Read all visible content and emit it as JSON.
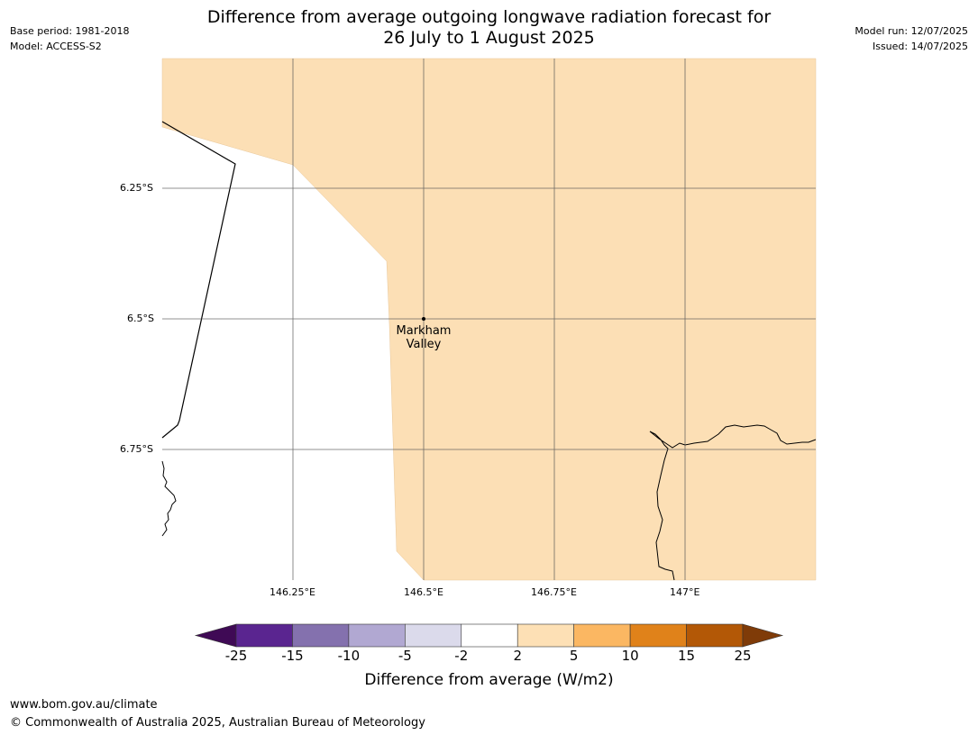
{
  "title": {
    "line1": "Difference from average outgoing longwave radiation forecast for",
    "line2": "26 July to 1 August 2025"
  },
  "meta_left": {
    "base_period": "Base period: 1981-2018",
    "model": "Model: ACCESS-S2"
  },
  "meta_right": {
    "model_run": "Model run: 12/07/2025",
    "issued": "Issued: 14/07/2025"
  },
  "map": {
    "lat_labels": [
      "6.25°S",
      "6.5°S",
      "6.75°S"
    ],
    "lon_labels": [
      "146.25°E",
      "146.5°E",
      "146.75°E",
      "147°E"
    ],
    "place": {
      "line1": "Markham",
      "line2": "Valley"
    },
    "fill_color": "#fcdfb5",
    "fill_bin": "2 to 5"
  },
  "colorbar": {
    "label": "Difference from average (W/m2)",
    "ticks": [
      "-25",
      "-15",
      "-10",
      "-5",
      "-2",
      "2",
      "5",
      "10",
      "15",
      "25"
    ],
    "colors": [
      "#3f0a55",
      "#5a2590",
      "#8471ae",
      "#b1a8d2",
      "#dbdaeb",
      "#ffffff",
      "#fde0b5",
      "#fbb762",
      "#e0821a",
      "#b35806",
      "#7f3b08"
    ]
  },
  "footer": {
    "url": "www.bom.gov.au/climate",
    "copyright": "© Commonwealth of Australia 2025, Australian Bureau of Meteorology"
  }
}
